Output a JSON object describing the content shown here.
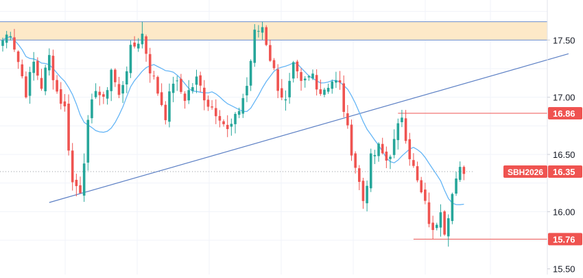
{
  "chart_data": {
    "type": "candlestick",
    "symbol": "SBH2026",
    "last_price": "16.35",
    "y_ticks": [
      "17.50",
      "17.00",
      "16.50",
      "16.00",
      "15.50"
    ],
    "ylim": [
      15.45,
      17.85
    ],
    "grid": true,
    "colors": {
      "up": "#26a69a",
      "down": "#ef5350",
      "moving_average": "#64b5f6",
      "trendline": "#5b7fc4",
      "resistance_zone_fill": "#fde9c8",
      "resistance_zone_border": "#6b8fd0",
      "level_line": "#ef5350",
      "label_bg": "#ef5350",
      "label_text": "#ffffff",
      "axis_text": "#131722",
      "grid": "#f0f3fa"
    },
    "resistance_zone": {
      "from": 17.5,
      "to": 17.66
    },
    "trendline": {
      "from": {
        "bar": 12,
        "price": 16.08
      },
      "to": {
        "bar": 146,
        "price": 17.38
      }
    },
    "levels": [
      {
        "price": 16.86,
        "label": "16.86",
        "from_bar": 102
      },
      {
        "price": 15.76,
        "label": "15.76",
        "from_bar": 106
      }
    ],
    "waypoints": [
      [
        0,
        17.5
      ],
      [
        2,
        17.58
      ],
      [
        6,
        17.05
      ],
      [
        8,
        17.3
      ],
      [
        10,
        17.1
      ],
      [
        12,
        17.35
      ],
      [
        14,
        17.05
      ],
      [
        16,
        16.9
      ],
      [
        18,
        16.25
      ],
      [
        20,
        16.2
      ],
      [
        22,
        16.75
      ],
      [
        24,
        17.1
      ],
      [
        26,
        16.95
      ],
      [
        28,
        17.25
      ],
      [
        30,
        17.0
      ],
      [
        33,
        17.4
      ],
      [
        36,
        17.55
      ],
      [
        38,
        17.25
      ],
      [
        40,
        17.05
      ],
      [
        42,
        16.85
      ],
      [
        44,
        17.15
      ],
      [
        47,
        17.0
      ],
      [
        50,
        17.15
      ],
      [
        53,
        16.95
      ],
      [
        56,
        16.85
      ],
      [
        58,
        16.7
      ],
      [
        60,
        16.8
      ],
      [
        63,
        17.1
      ],
      [
        65,
        17.55
      ],
      [
        67,
        17.62
      ],
      [
        69,
        17.35
      ],
      [
        71,
        17.1
      ],
      [
        73,
        16.95
      ],
      [
        75,
        17.25
      ],
      [
        77,
        17.1
      ],
      [
        80,
        17.2
      ],
      [
        82,
        17.05
      ],
      [
        85,
        17.15
      ],
      [
        87,
        17.1
      ],
      [
        89,
        16.7
      ],
      [
        91,
        16.4
      ],
      [
        93,
        16.1
      ],
      [
        95,
        16.45
      ],
      [
        97,
        16.55
      ],
      [
        99,
        16.45
      ],
      [
        101,
        16.6
      ],
      [
        103,
        16.85
      ],
      [
        105,
        16.5
      ],
      [
        107,
        16.25
      ],
      [
        109,
        16.05
      ],
      [
        111,
        15.8
      ],
      [
        113,
        16.05
      ],
      [
        114,
        15.85
      ],
      [
        116,
        16.15
      ],
      [
        118,
        16.35
      ],
      [
        119,
        16.33
      ]
    ]
  }
}
